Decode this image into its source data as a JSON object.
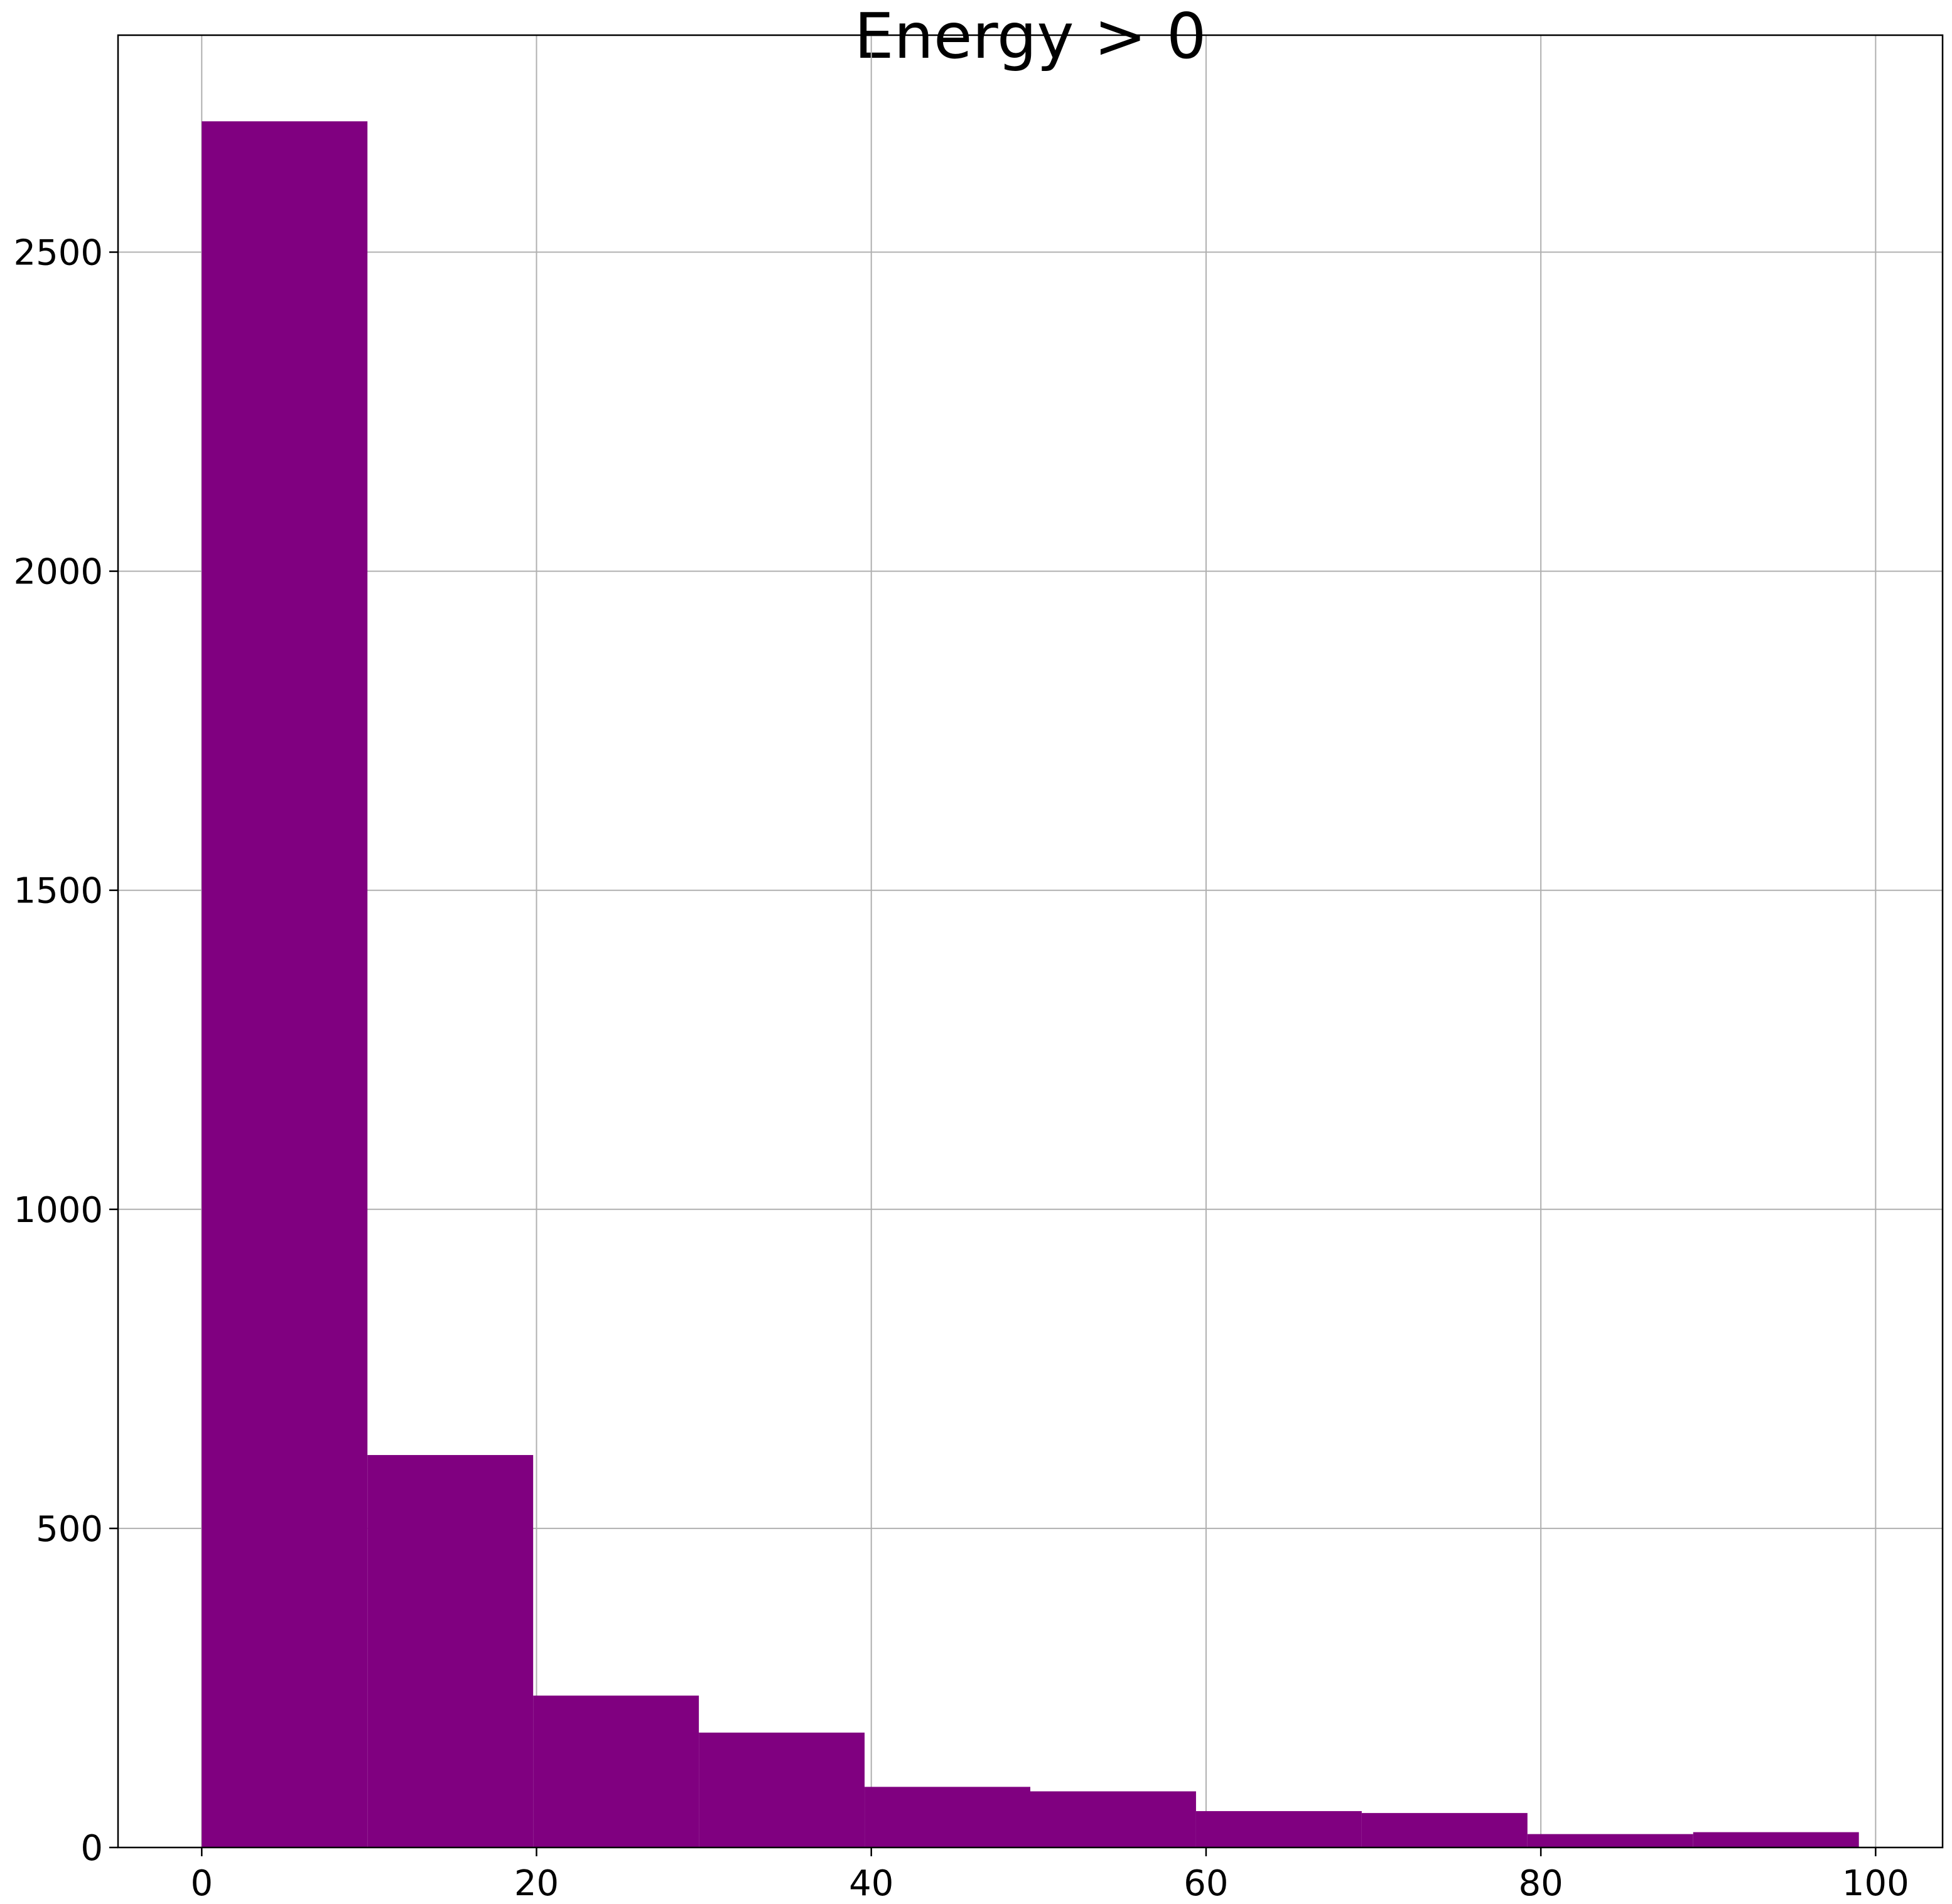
{
  "chart_data": {
    "type": "bar",
    "title": "Energy > 0",
    "xlabel": "",
    "ylabel": "",
    "bin_edges": [
      0,
      9.9,
      19.8,
      29.7,
      39.6,
      49.5,
      59.4,
      69.3,
      79.2,
      89.1,
      99
    ],
    "values": [
      2705,
      615,
      238,
      180,
      95,
      88,
      57,
      54,
      21,
      24
    ],
    "xlim": [
      -5,
      104
    ],
    "ylim": [
      0,
      2840
    ],
    "xticks": [
      0,
      20,
      40,
      60,
      80,
      100
    ],
    "yticks": [
      0,
      500,
      1000,
      1500,
      2000,
      2500
    ],
    "grid": true,
    "bar_color": "#800080"
  }
}
